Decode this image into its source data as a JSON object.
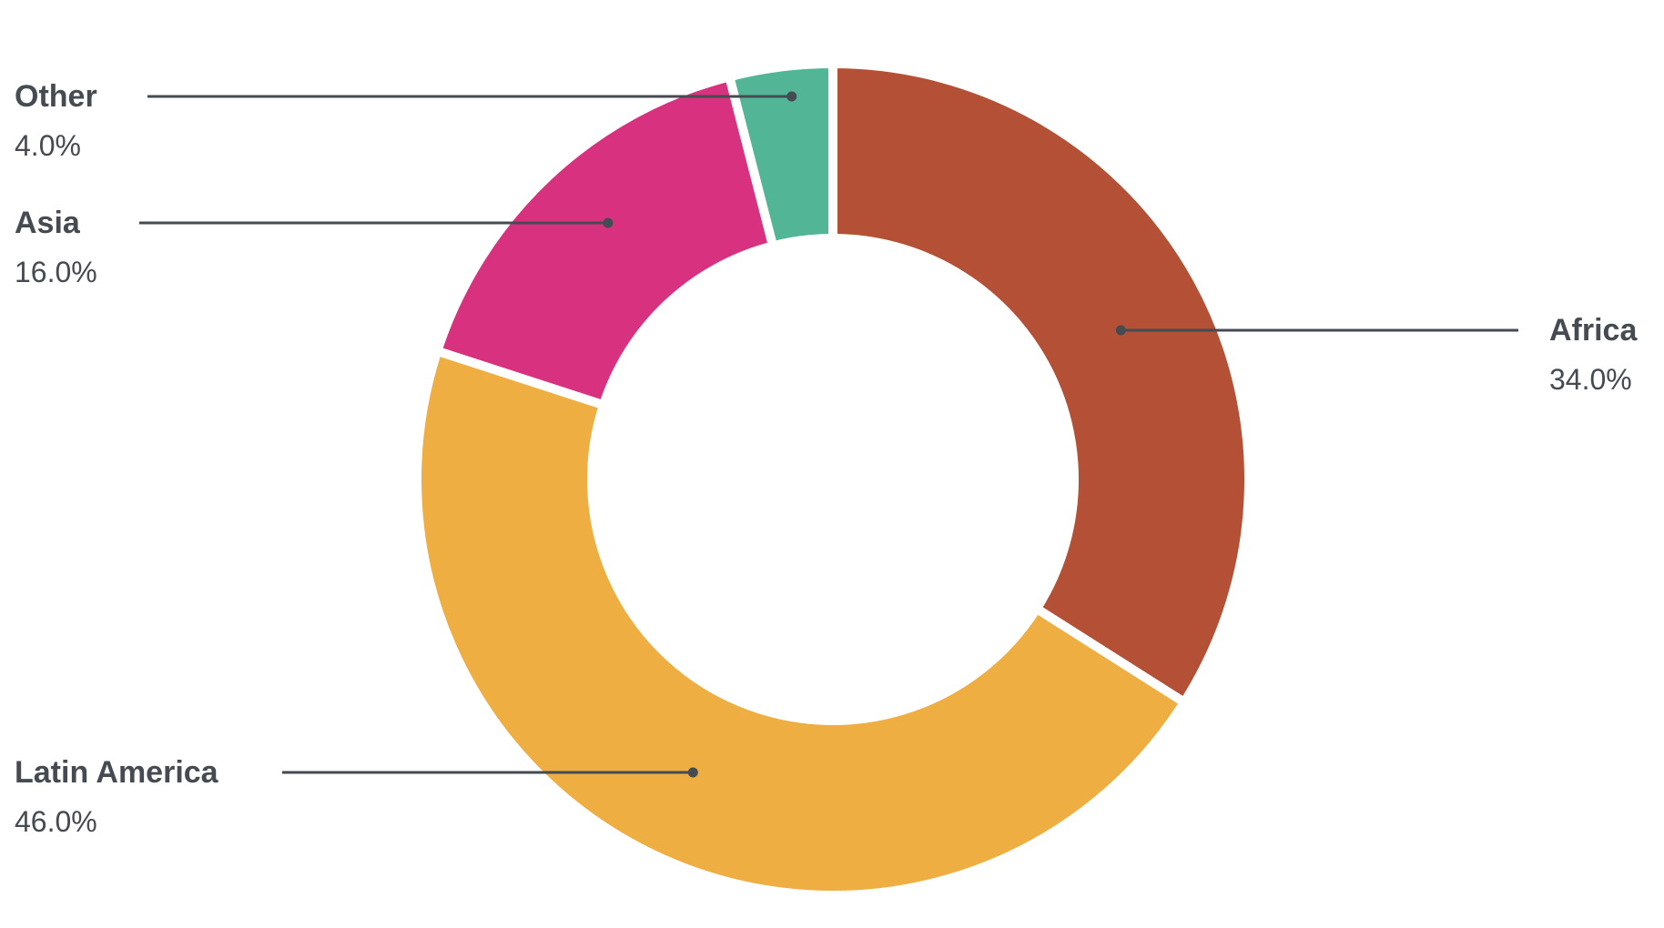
{
  "chart_data": {
    "type": "pie",
    "style": "donut",
    "categories": [
      "Africa",
      "Latin America",
      "Asia",
      "Other"
    ],
    "values": [
      34.0,
      46.0,
      16.0,
      4.0
    ],
    "value_labels": [
      "34.0%",
      "46.0%",
      "16.0%",
      "4.0%"
    ],
    "colors": [
      "#b45035",
      "#eeae42",
      "#d8317f",
      "#52b596"
    ],
    "title": "",
    "legend": "none",
    "labels_placement": "outside with leader lines"
  }
}
